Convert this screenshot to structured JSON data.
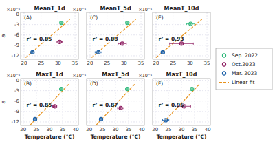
{
  "chart_data": [
    {
      "type": "scatter",
      "title": "MeanT_1d",
      "annotations": [
        "(A)",
        "×10⁻⁴",
        "r² = 0.85"
      ],
      "xlim": [
        19,
        36
      ],
      "xticks": [
        20,
        25,
        30,
        35
      ],
      "ylim": [
        -13,
        0.5
      ],
      "yticks": [
        0,
        -3,
        -6,
        -9,
        -12
      ],
      "grid": true,
      "ylabel": "a",
      "legend": "right",
      "series": [
        {
          "name": "Sep. 2022",
          "color": "#2db87a",
          "marker": "circle",
          "x": [
            31.0
          ],
          "values": [
            -2.5
          ],
          "xerr": [
            0.3
          ],
          "yerr": [
            0.3
          ]
        },
        {
          "name": "Oct.2023",
          "color": "#8b1a5e",
          "marker": "circle",
          "x": [
            30.5
          ],
          "values": [
            -8.0
          ],
          "xerr": [
            0.8
          ],
          "yerr": [
            0.3
          ]
        },
        {
          "name": "Mar. 2023",
          "color": "#1a5fa8",
          "marker": "circle",
          "x": [
            22.5
          ],
          "values": [
            -11.0
          ],
          "xerr": [
            0.4
          ],
          "yerr": [
            0.3
          ]
        },
        {
          "name": "Linear fit",
          "type": "line",
          "line_style": "dashed",
          "color": "#e8921c",
          "x": [
            20.5,
            33.5
          ],
          "values": [
            -12.5,
            -1.5
          ]
        }
      ]
    },
    {
      "type": "scatter",
      "title": "MeanT_5d",
      "annotations": [
        "(C)",
        "×10⁻⁴",
        "r² = 0.88"
      ],
      "xlim": [
        19,
        36
      ],
      "xticks": [
        20,
        25,
        30,
        35
      ],
      "ylim": [
        -13,
        0.5
      ],
      "yticks": [
        0,
        -3,
        -6,
        -9,
        -12
      ],
      "grid": true,
      "tick_labels": "x",
      "series": [
        {
          "name": "Sep. 2022",
          "color": "#2db87a",
          "marker": "circle",
          "x": [
            31.0
          ],
          "values": [
            -2.5
          ],
          "xerr": [
            0.3
          ],
          "yerr": [
            0.3
          ]
        },
        {
          "name": "Oct.2023",
          "color": "#8b1a5e",
          "marker": "circle",
          "x": [
            29.5
          ],
          "values": [
            -8.5
          ],
          "xerr": [
            1.2
          ],
          "yerr": [
            0.3
          ]
        },
        {
          "name": "Mar. 2023",
          "color": "#1a5fa8",
          "marker": "circle",
          "x": [
            22.5
          ],
          "values": [
            -11.0
          ],
          "xerr": [
            1.0
          ],
          "yerr": [
            0.3
          ]
        },
        {
          "name": "Linear fit",
          "type": "line",
          "line_style": "dashed",
          "color": "#e8921c",
          "x": [
            20.5,
            33.5
          ],
          "values": [
            -12.5,
            -1.5
          ]
        }
      ]
    },
    {
      "type": "scatter",
      "title": "MeanT_10d",
      "annotations": [
        "(E)",
        "×10⁻⁴",
        "r² = 0.93"
      ],
      "xlim": [
        19,
        36
      ],
      "xticks": [
        20,
        25,
        30,
        35
      ],
      "ylim": [
        -13,
        0.5
      ],
      "yticks": [
        0,
        -3,
        -6,
        -9,
        -12
      ],
      "grid": true,
      "tick_labels": "x",
      "series": [
        {
          "name": "Sep. 2022",
          "color": "#2db87a",
          "marker": "circle",
          "x": [
            30.2
          ],
          "values": [
            -2.8
          ],
          "xerr": [
            1.2
          ],
          "yerr": [
            0.3
          ]
        },
        {
          "name": "Oct.2023",
          "color": "#8b1a5e",
          "marker": "circle",
          "x": [
            27.5
          ],
          "values": [
            -8.5
          ],
          "xerr": [
            3.5
          ],
          "yerr": [
            0.3
          ]
        },
        {
          "name": "Mar. 2023",
          "color": "#1a5fa8",
          "marker": "circle",
          "x": [
            22.0
          ],
          "values": [
            -11.0
          ],
          "xerr": [
            0.5
          ],
          "yerr": [
            0.3
          ]
        },
        {
          "name": "Linear fit",
          "type": "line",
          "line_style": "dashed",
          "color": "#e8921c",
          "x": [
            20.0,
            33.5
          ],
          "values": [
            -12.5,
            -1.5
          ]
        }
      ]
    },
    {
      "type": "scatter",
      "title": "MaxT_1d",
      "annotations": [
        "(B)",
        "×10⁻⁴",
        "r² = 0.85"
      ],
      "xlim": [
        19,
        41
      ],
      "xticks": [
        20,
        25,
        30,
        35,
        40
      ],
      "ylim": [
        -13,
        0.5
      ],
      "yticks": [
        0,
        -3,
        -6,
        -9,
        -12
      ],
      "grid": true,
      "ylabel": "a",
      "xlabel": "Temperature (°C)",
      "series": [
        {
          "name": "Sep. 2022",
          "color": "#2db87a",
          "marker": "circle",
          "x": [
            34.5
          ],
          "values": [
            -2.5
          ],
          "xerr": [
            0.3
          ],
          "yerr": [
            0.3
          ]
        },
        {
          "name": "Oct.2023",
          "color": "#8b1a5e",
          "marker": "circle",
          "x": [
            32.0
          ],
          "values": [
            -7.5
          ],
          "xerr": [
            0.8
          ],
          "yerr": [
            0.3
          ]
        },
        {
          "name": "Mar. 2023",
          "color": "#1a5fa8",
          "marker": "circle",
          "x": [
            24.5
          ],
          "values": [
            -11.2
          ],
          "xerr": [
            0.4
          ],
          "yerr": [
            0.3
          ]
        },
        {
          "name": "Linear fit",
          "type": "line",
          "line_style": "dashed",
          "color": "#e8921c",
          "x": [
            22.5,
            37.5
          ],
          "values": [
            -13.0,
            -1.0
          ]
        }
      ]
    },
    {
      "type": "scatter",
      "title": "MaxT_5d",
      "annotations": [
        "(D)",
        "×10⁻⁴",
        "r² = 0.87"
      ],
      "xlim": [
        19,
        41
      ],
      "xticks": [
        20,
        25,
        30,
        35,
        40
      ],
      "ylim": [
        -13,
        0.5
      ],
      "yticks": [
        0,
        -3,
        -6,
        -9,
        -12
      ],
      "grid": true,
      "tick_labels": "x",
      "xlabel": "Temperature (°C)",
      "series": [
        {
          "name": "Sep. 2022",
          "color": "#2db87a",
          "marker": "circle",
          "x": [
            34.5
          ],
          "values": [
            -2.5
          ],
          "xerr": [
            0.3
          ],
          "yerr": [
            0.3
          ]
        },
        {
          "name": "Oct.2023",
          "color": "#8b1a5e",
          "marker": "circle",
          "x": [
            32.0
          ],
          "values": [
            -8.0
          ],
          "xerr": [
            1.2
          ],
          "yerr": [
            0.3
          ]
        },
        {
          "name": "Mar. 2023",
          "color": "#1a5fa8",
          "marker": "circle",
          "x": [
            24.5
          ],
          "values": [
            -11.2
          ],
          "xerr": [
            0.5
          ],
          "yerr": [
            0.3
          ]
        },
        {
          "name": "Linear fit",
          "type": "line",
          "line_style": "dashed",
          "color": "#e8921c",
          "x": [
            22.5,
            37.5
          ],
          "values": [
            -13.0,
            -1.0
          ]
        }
      ]
    },
    {
      "type": "scatter",
      "title": "MaxT_10d",
      "annotations": [
        "(F)",
        "×10⁻⁴",
        "r² = 0.96"
      ],
      "xlim": [
        19,
        41
      ],
      "xticks": [
        20,
        25,
        30,
        35,
        40
      ],
      "ylim": [
        -13,
        0.5
      ],
      "yticks": [
        0,
        -3,
        -6,
        -9,
        -12
      ],
      "grid": true,
      "tick_labels": "x",
      "xlabel": "Temperature (°C)",
      "series": [
        {
          "name": "Sep. 2022",
          "color": "#2db87a",
          "marker": "circle",
          "x": [
            34.0
          ],
          "values": [
            -2.5
          ],
          "xerr": [
            0.4
          ],
          "yerr": [
            0.3
          ]
        },
        {
          "name": "Oct.2023",
          "color": "#8b1a5e",
          "marker": "circle",
          "x": [
            31.0
          ],
          "values": [
            -7.5
          ],
          "xerr": [
            2.5
          ],
          "yerr": [
            0.3
          ]
        },
        {
          "name": "Mar. 2023",
          "color": "#1a5fa8",
          "marker": "circle",
          "x": [
            24.0
          ],
          "values": [
            -11.5
          ],
          "xerr": [
            1.2
          ],
          "yerr": [
            0.3
          ]
        },
        {
          "name": "Linear fit",
          "type": "line",
          "line_style": "dashed",
          "color": "#e8921c",
          "x": [
            22.0,
            37.0
          ],
          "values": [
            -13.0,
            -1.0
          ]
        }
      ]
    }
  ]
}
